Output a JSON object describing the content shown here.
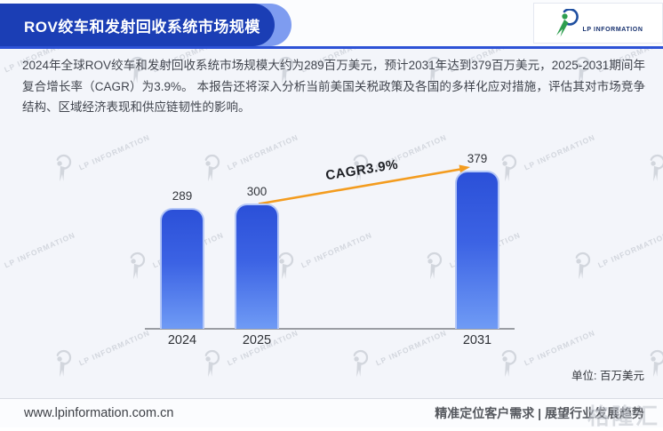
{
  "header": {
    "title": "ROV绞车和发射回收系统市场规模",
    "logo_text": "LP INFORMATION"
  },
  "intro": {
    "text": "2024年全球ROV绞车和发射回收系统市场规模大约为289百万美元，预计2031年达到379百万美元，2025-2031期间年复合增长率（CAGR）为3.9%。 本报告还将深入分析当前美国关税政策及各国的多样化应对措施，评估其对市场竞争结构、区域经济表现和供应链韧性的影响。"
  },
  "chart_data": {
    "type": "bar",
    "title": "ROV绞车和发射回收系统市场规模",
    "categories": [
      "2024",
      "2025",
      "2031"
    ],
    "values": [
      289,
      300,
      379
    ],
    "unit_label": "单位: 百万美元",
    "cagr_label": "CAGR3.9%",
    "ylabel": "",
    "xlabel": "",
    "ylim": [
      0,
      400
    ],
    "grid": false,
    "annotations": [
      "CAGR3.9% 箭头由2025指向2031"
    ],
    "bar_color_top": "#2b50d8",
    "bar_color_bottom": "#6f9bf5",
    "bar_border_color": "#bacbf8",
    "arrow_color": "#f39c1f"
  },
  "watermark": {
    "label": "LP INFORMATION"
  },
  "footer": {
    "website": "www.lpinformation.com.cn",
    "slogan": "精准定位客户需求 | 展望行业发展趋势",
    "overlay_logo": "格隆汇"
  }
}
